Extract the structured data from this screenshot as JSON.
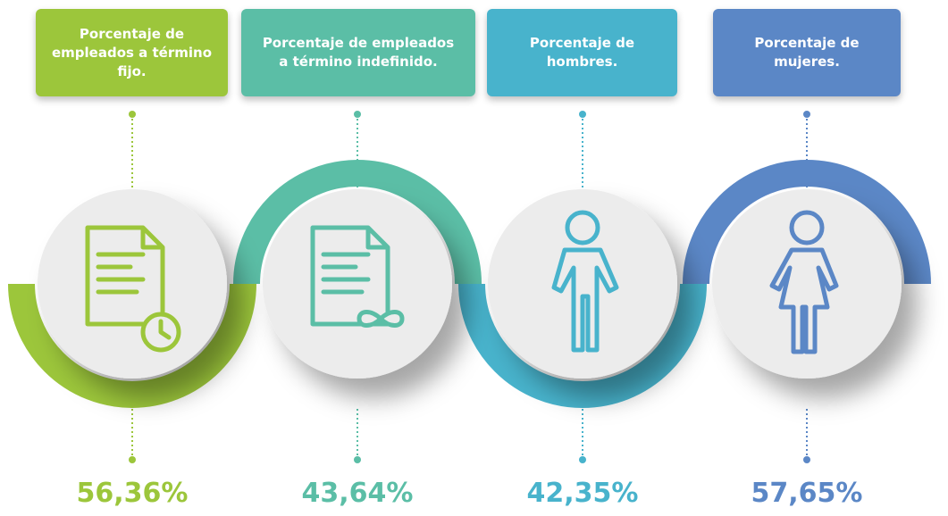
{
  "items": [
    {
      "label": "Porcentaje de empleados a término fijo.",
      "value": "56,36%",
      "color": "#9cc63b"
    },
    {
      "label": "Porcentaje de empleados a término indefinido.",
      "value": "43,64%",
      "color": "#5bbea6"
    },
    {
      "label": "Porcentaje de hombres.",
      "value": "42,35%",
      "color": "#48b3cc"
    },
    {
      "label": "Porcentaje de mujeres.",
      "value": "57,65%",
      "color": "#5b87c6"
    }
  ]
}
